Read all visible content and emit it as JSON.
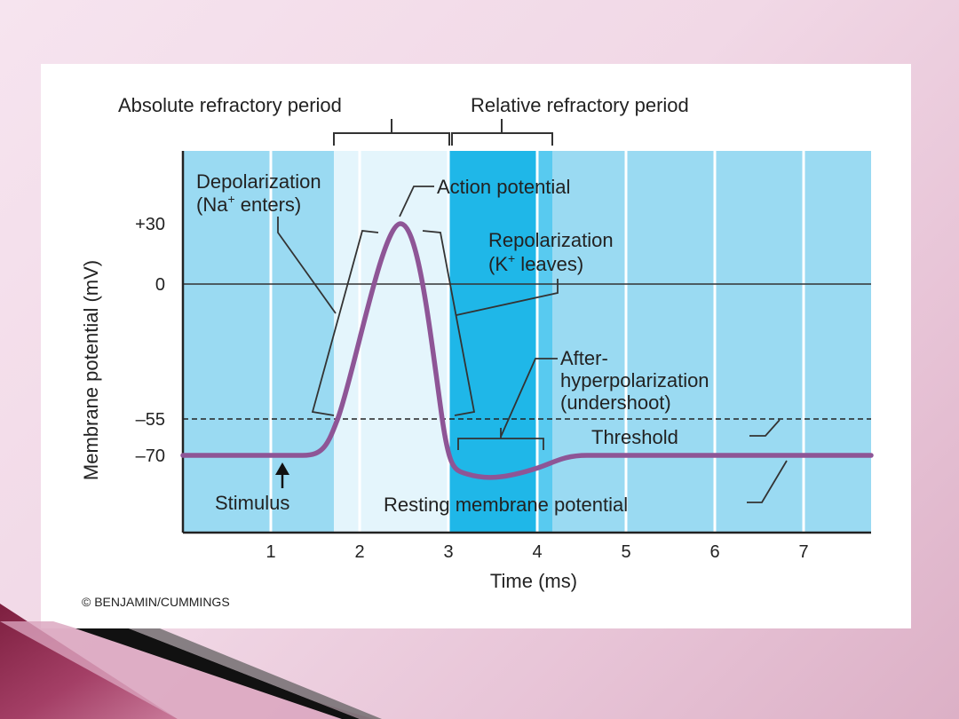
{
  "header": {
    "absolute_refractory": "Absolute refractory period",
    "relative_refractory": "Relative refractory period"
  },
  "axes": {
    "ylabel": "Membrane potential (mV)",
    "xlabel": "Time (ms)",
    "y_ticks": [
      "+30",
      "0",
      "–55",
      "–70"
    ],
    "x_ticks": [
      "1",
      "2",
      "3",
      "4",
      "5",
      "6",
      "7"
    ]
  },
  "annotations": {
    "depolarization_line1": "Depolarization",
    "depolarization_line2_prefix": "(Na",
    "depolarization_line2_sup": "+",
    "depolarization_line2_suffix": " enters)",
    "action_potential": "Action potential",
    "repolarization_line1": "Repolarization",
    "repolarization_line2_prefix": "(K",
    "repolarization_line2_sup": "+",
    "repolarization_line2_suffix": " leaves)",
    "after_line1": "After-",
    "after_line2": "hyperpolarization",
    "after_line3": "(undershoot)",
    "threshold": "Threshold",
    "stimulus": "Stimulus",
    "resting": "Resting membrane potential"
  },
  "copyright": "© BENJAMIN/CUMMINGS",
  "colors": {
    "background_light": "#9adaf2",
    "absolute_band": "#e4f5fc",
    "relative_band": "#1fb7e8",
    "relative_band_late": "#58caf0",
    "curve": "#8e5596"
  }
}
